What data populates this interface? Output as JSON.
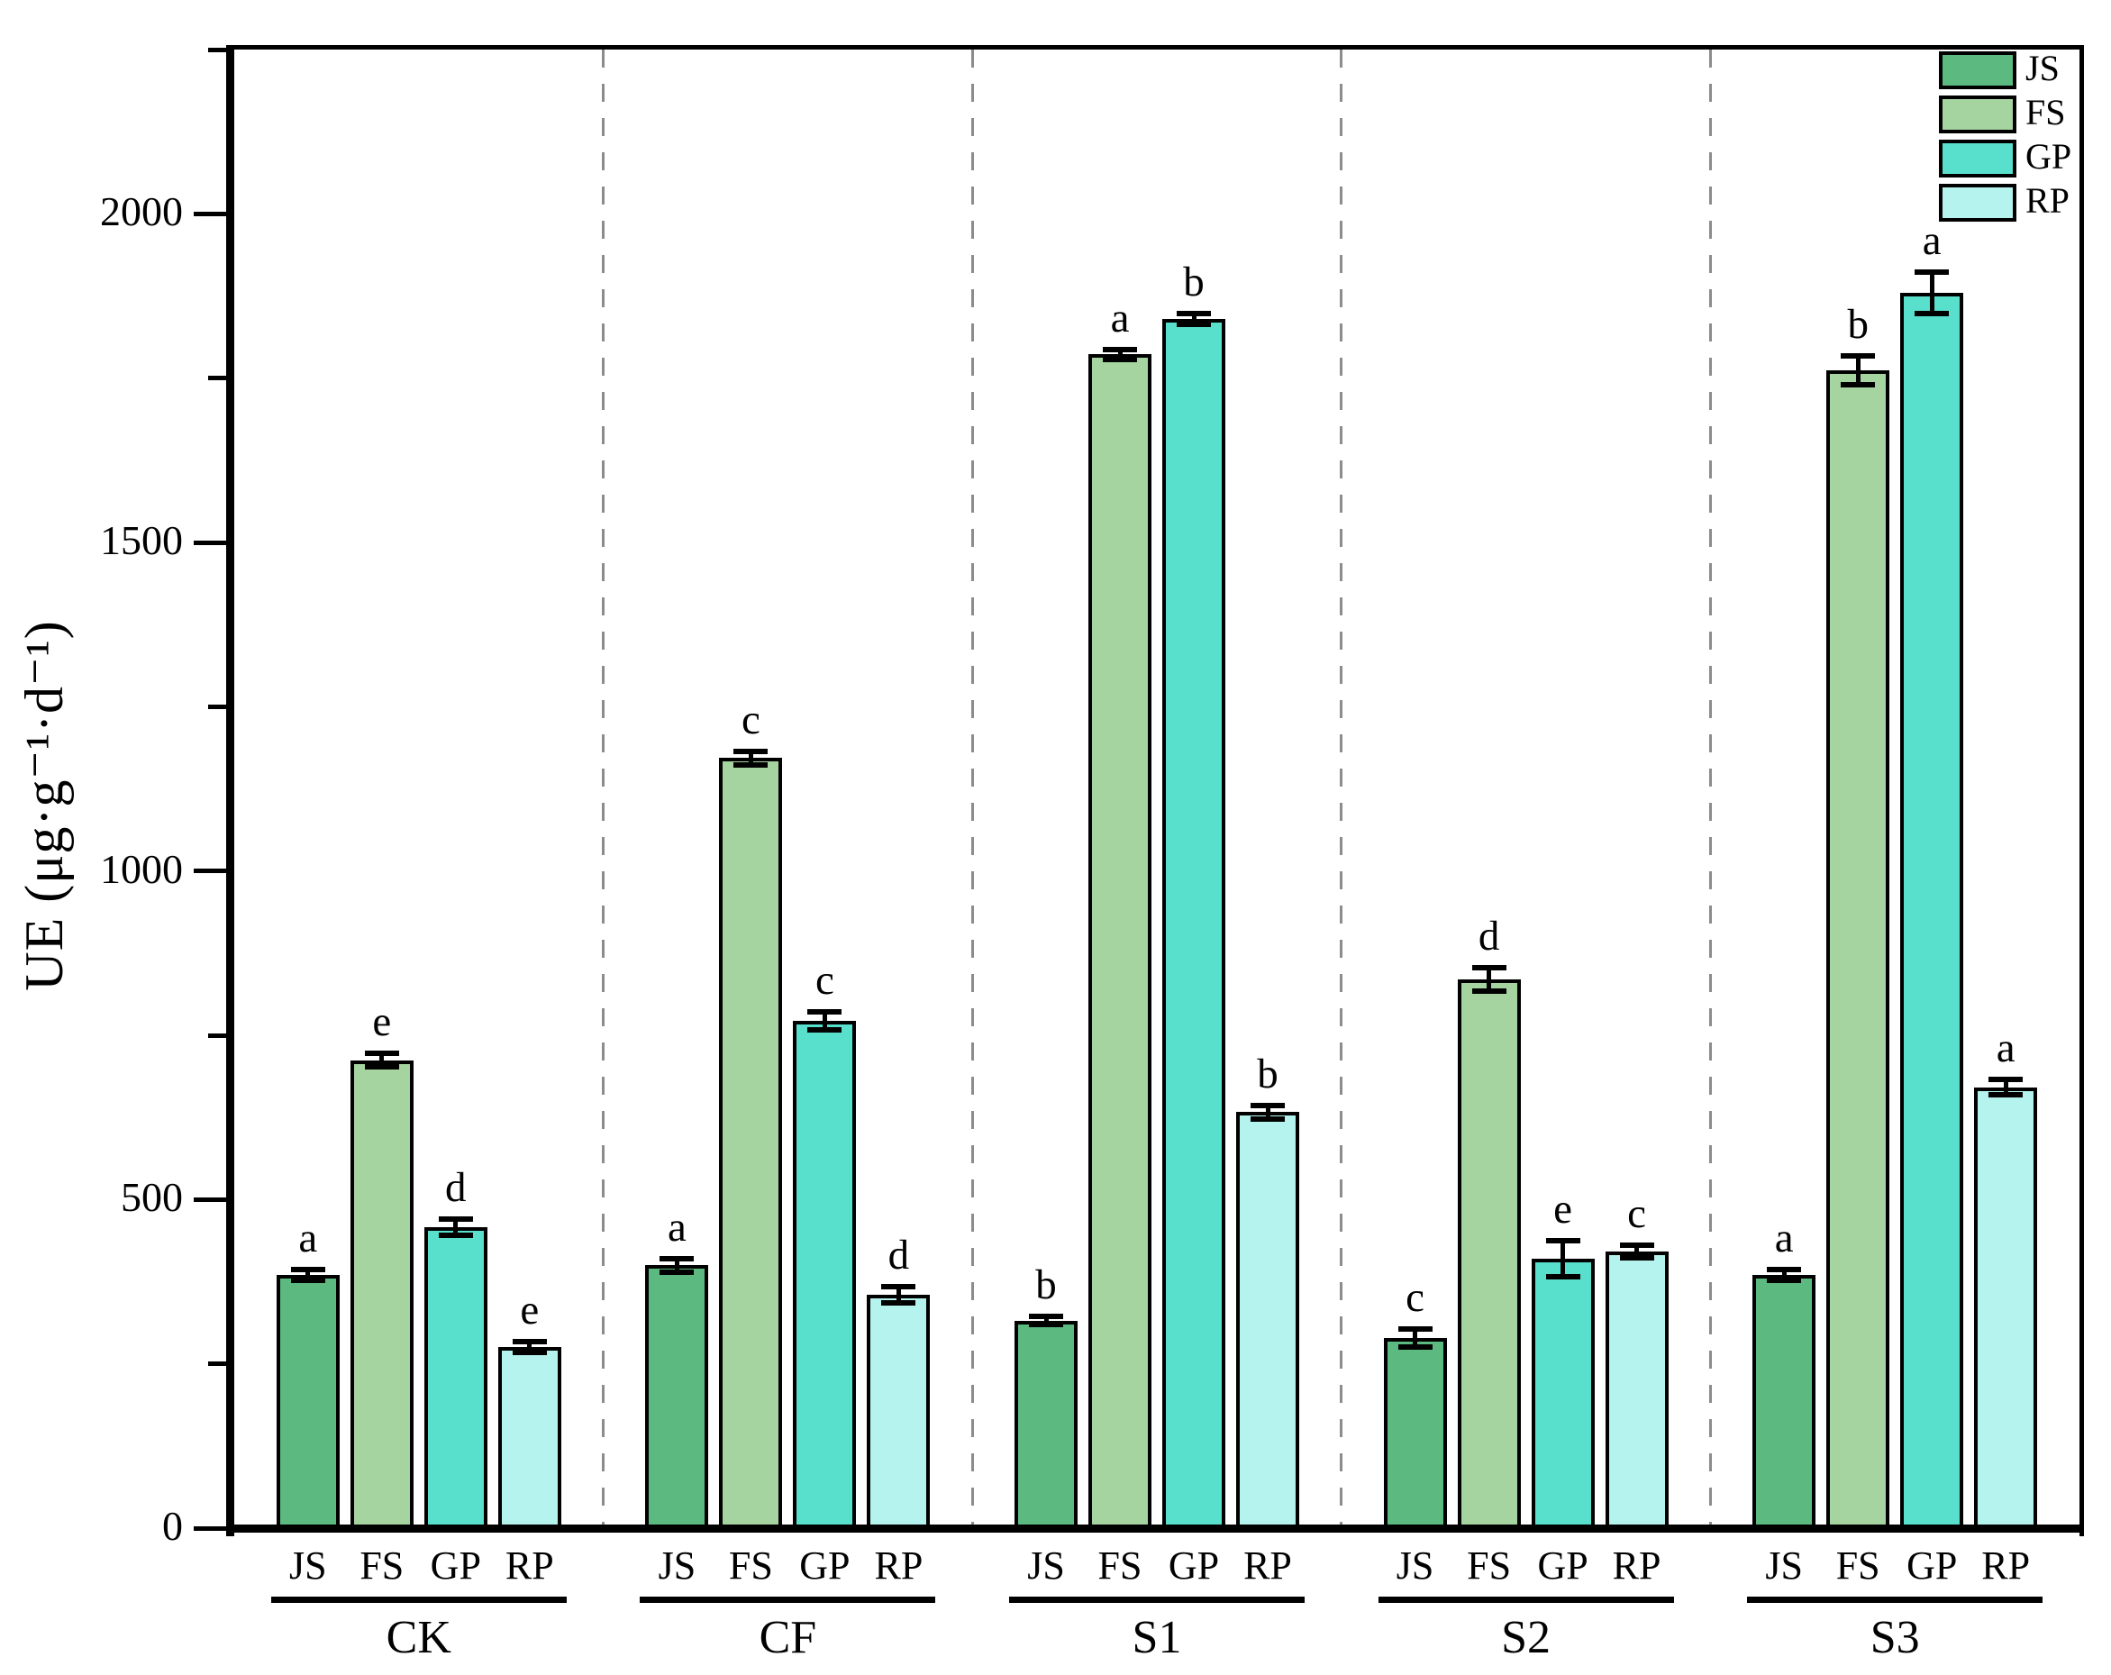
{
  "chart_data": {
    "type": "bar",
    "title": "",
    "ylabel": "UE (μg·g⁻¹·d⁻¹)",
    "xlabel": "",
    "ylim": [
      0,
      2250
    ],
    "yticks_major": [
      0,
      500,
      1000,
      1500,
      2000
    ],
    "ytick_minor_step": 250,
    "grid": "off",
    "legend_position": "top-right-inside",
    "series": [
      {
        "name": "JS",
        "color": "#5CBA80"
      },
      {
        "name": "FS",
        "color": "#A6D4A0"
      },
      {
        "name": "GP",
        "color": "#58E0CC"
      },
      {
        "name": "RP",
        "color": "#B5F3EF"
      }
    ],
    "groups": [
      {
        "label": "CK",
        "values": [
          385,
          712,
          458,
          276
        ],
        "errors": [
          8,
          10,
          12,
          8
        ],
        "letters": [
          "a",
          "e",
          "d",
          "e"
        ]
      },
      {
        "label": "CF",
        "values": [
          400,
          1172,
          772,
          355
        ],
        "errors": [
          10,
          10,
          14,
          12
        ],
        "letters": [
          "a",
          "c",
          "c",
          "d"
        ]
      },
      {
        "label": "S1",
        "values": [
          316,
          1786,
          1840,
          633
        ],
        "errors": [
          6,
          8,
          8,
          10
        ],
        "letters": [
          "b",
          "a",
          "b",
          "b"
        ]
      },
      {
        "label": "S2",
        "values": [
          289,
          835,
          410,
          421
        ],
        "errors": [
          14,
          18,
          28,
          10
        ],
        "letters": [
          "c",
          "d",
          "e",
          "c"
        ]
      },
      {
        "label": "S3",
        "values": [
          385,
          1762,
          1880,
          671
        ],
        "errors": [
          8,
          22,
          32,
          12
        ],
        "letters": [
          "a",
          "b",
          "a",
          "a"
        ]
      }
    ],
    "colors": {
      "axis": "#000000",
      "divider": "#8c8c8c",
      "background": "#ffffff"
    }
  }
}
